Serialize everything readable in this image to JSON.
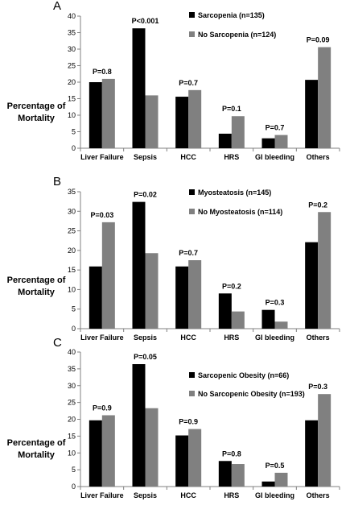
{
  "colors": {
    "series_1": "#000000",
    "series_2": "#808080",
    "axis": "#808080"
  },
  "chart_data": [
    {
      "panel": "A",
      "type": "bar",
      "ylabel": [
        "Percentage of",
        "Mortality"
      ],
      "ylim": [
        0,
        40
      ],
      "yticks": [
        0,
        5,
        10,
        15,
        20,
        25,
        30,
        35,
        40
      ],
      "categories": [
        "Liver Failure",
        "Sepsis",
        "HCC",
        "HRS",
        "GI bleeding",
        "Others"
      ],
      "p_values": [
        "P=0.8",
        "P<0.001",
        "P=0.7",
        "P=0.1",
        "P=0.7",
        "P=0.09"
      ],
      "series": [
        {
          "name": "Sarcopenia (n=135)",
          "values": [
            20.0,
            36.3,
            15.6,
            4.4,
            3.0,
            20.7
          ]
        },
        {
          "name": "No Sarcopenia (n=124)",
          "values": [
            21.0,
            16.0,
            17.6,
            9.7,
            4.0,
            30.6
          ]
        }
      ],
      "legend_position": "top-center",
      "grid": false
    },
    {
      "panel": "B",
      "type": "bar",
      "ylabel": [
        "Percentage of",
        "Mortality"
      ],
      "ylim": [
        0,
        35
      ],
      "yticks": [
        0,
        5,
        10,
        15,
        20,
        25,
        30,
        35
      ],
      "categories": [
        "Liver Failure",
        "Sepsis",
        "HCC",
        "HRS",
        "GI bleeding",
        "Others"
      ],
      "p_values": [
        "P=0.03",
        "P=0.02",
        "P=0.7",
        "P=0.2",
        "P=0.3",
        "P=0.2"
      ],
      "series": [
        {
          "name": "Myosteatosis (n=145)",
          "values": [
            15.9,
            32.4,
            15.9,
            9.0,
            4.8,
            22.1
          ]
        },
        {
          "name": "No Myosteatosis (n=114)",
          "values": [
            27.2,
            19.3,
            17.5,
            4.4,
            1.8,
            29.8
          ]
        }
      ],
      "legend_position": "top-center",
      "grid": false
    },
    {
      "panel": "C",
      "type": "bar",
      "ylabel": [
        "Percentage of",
        "Mortality"
      ],
      "ylim": [
        0,
        40
      ],
      "yticks": [
        0,
        5,
        10,
        15,
        20,
        25,
        30,
        35,
        40
      ],
      "categories": [
        "Liver Failure",
        "Sepsis",
        "HCC",
        "HRS",
        "GI bleeding",
        "Others"
      ],
      "p_values": [
        "P=0.9",
        "P=0.05",
        "P=0.9",
        "P=0.8",
        "P=0.5",
        "P=0.3"
      ],
      "series": [
        {
          "name": "Sarcopenic Obesity (n=66)",
          "values": [
            19.7,
            36.4,
            15.2,
            7.6,
            1.5,
            19.7
          ]
        },
        {
          "name": "No Sarcopenic Obesity (n=193)",
          "values": [
            21.2,
            23.3,
            17.1,
            6.7,
            4.1,
            27.5
          ]
        }
      ],
      "legend_position": "top-center",
      "grid": false
    }
  ]
}
